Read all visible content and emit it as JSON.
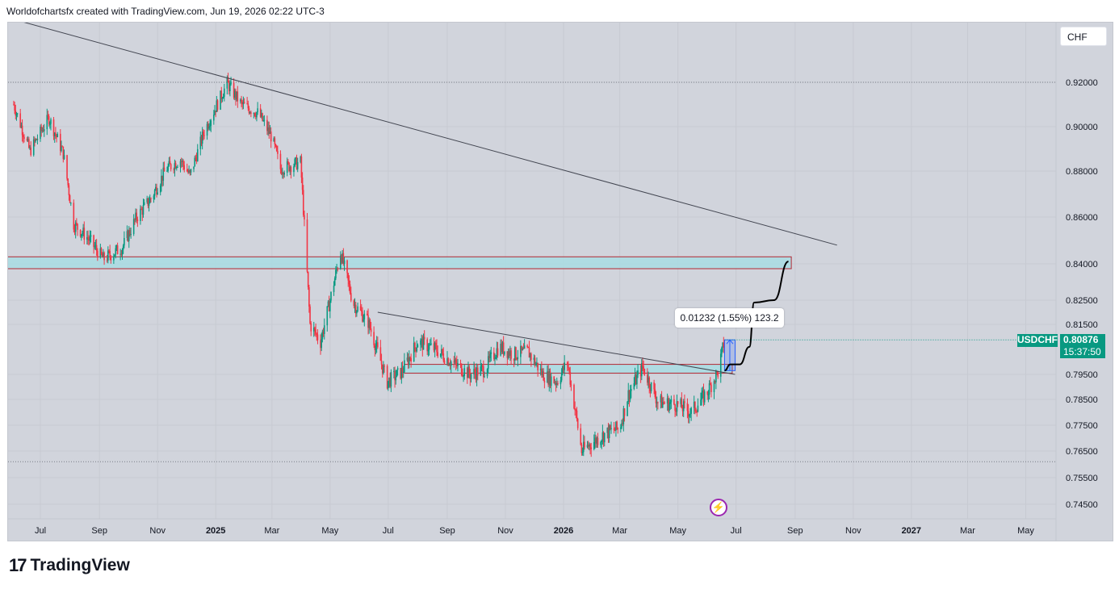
{
  "header": {
    "caption": "Worldofchartsfx created with TradingView.com, Jun 19, 2026 02:22 UTC-3"
  },
  "currency_button": "CHF",
  "symbol_badge": "USDCHF",
  "last_price": "0.80876",
  "countdown": "15:37:50",
  "measure_label": "0.01232 (1.55%) 123.2",
  "logo_text": "TradingView",
  "icons": {
    "logo": "tradingview-logo-icon",
    "flash": "lightning-icon"
  },
  "colors": {
    "up": "#089981",
    "down": "#f23645",
    "zone_fill": "#a9dce3",
    "zone_border": "#b22833",
    "measure": "#2962ff",
    "background": "#d1d4dc",
    "trendline": "#434651"
  },
  "chart_data": {
    "type": "candlestick",
    "symbol": "USDCHF",
    "interval": "daily",
    "y_ticks": [
      "0.92000",
      "0.90000",
      "0.88000",
      "0.86000",
      "0.84000",
      "0.82500",
      "0.81500",
      "0.79500",
      "0.78500",
      "0.77500",
      "0.76500",
      "0.75500",
      "0.74500"
    ],
    "x_ticks": [
      "Jul",
      "Sep",
      "Nov",
      "2025",
      "Mar",
      "May",
      "Jul",
      "Sep",
      "Nov",
      "2026",
      "Mar",
      "May",
      "Jul",
      "Sep",
      "Nov",
      "2027",
      "Mar",
      "May"
    ],
    "dotted_levels": [
      0.92,
      0.761
    ],
    "price_path": [
      [
        "2024-06-03",
        0.91
      ],
      [
        "2024-06-20",
        0.889
      ],
      [
        "2024-07-10",
        0.904
      ],
      [
        "2024-07-25",
        0.888
      ],
      [
        "2024-08-05",
        0.857
      ],
      [
        "2024-08-20",
        0.851
      ],
      [
        "2024-09-05",
        0.842
      ],
      [
        "2024-09-25",
        0.847
      ],
      [
        "2024-10-10",
        0.86
      ],
      [
        "2024-10-25",
        0.868
      ],
      [
        "2024-11-10",
        0.881
      ],
      [
        "2024-11-25",
        0.885
      ],
      [
        "2024-12-05",
        0.878
      ],
      [
        "2024-12-20",
        0.898
      ],
      [
        "2025-01-13",
        0.9195
      ],
      [
        "2025-01-28",
        0.91
      ],
      [
        "2025-02-15",
        0.906
      ],
      [
        "2025-03-01",
        0.895
      ],
      [
        "2025-03-10",
        0.881
      ],
      [
        "2025-03-31",
        0.884
      ],
      [
        "2025-04-10",
        0.815
      ],
      [
        "2025-04-21",
        0.808
      ],
      [
        "2025-05-01",
        0.825
      ],
      [
        "2025-05-12",
        0.845
      ],
      [
        "2025-05-25",
        0.824
      ],
      [
        "2025-06-10",
        0.816
      ],
      [
        "2025-06-30",
        0.792
      ],
      [
        "2025-07-15",
        0.796
      ],
      [
        "2025-08-01",
        0.808
      ],
      [
        "2025-08-20",
        0.805
      ],
      [
        "2025-09-05",
        0.8
      ],
      [
        "2025-09-25",
        0.795
      ],
      [
        "2025-10-10",
        0.797
      ],
      [
        "2025-10-25",
        0.806
      ],
      [
        "2025-11-10",
        0.803
      ],
      [
        "2025-11-25",
        0.804
      ],
      [
        "2025-12-10",
        0.795
      ],
      [
        "2025-12-25",
        0.792
      ],
      [
        "2026-01-05",
        0.8
      ],
      [
        "2026-01-20",
        0.765
      ],
      [
        "2026-01-30",
        0.768
      ],
      [
        "2026-02-15",
        0.772
      ],
      [
        "2026-03-01",
        0.774
      ],
      [
        "2026-03-10",
        0.787
      ],
      [
        "2026-03-25",
        0.798
      ],
      [
        "2026-04-10",
        0.784
      ],
      [
        "2026-04-30",
        0.783
      ],
      [
        "2026-05-15",
        0.78
      ],
      [
        "2026-06-01",
        0.788
      ],
      [
        "2026-06-12",
        0.796
      ],
      [
        "2026-06-19",
        0.8088
      ]
    ],
    "trendlines": [
      {
        "from": [
          "2024-05-20",
          0.95
        ],
        "to": [
          "2026-10-15",
          0.848
        ]
      },
      {
        "from": [
          "2025-06-20",
          0.82
        ],
        "to": [
          "2026-06-30",
          0.795
        ]
      }
    ],
    "zones": [
      {
        "x0": "2024-05-20",
        "x1": "2026-08-28",
        "y0": 0.838,
        "y1": 0.843
      },
      {
        "x0": "2025-07-18",
        "x1": "2026-06-27",
        "y0": 0.7955,
        "y1": 0.799
      }
    ],
    "measurement": {
      "x0": "2026-06-19",
      "x1": "2026-06-30",
      "from": 0.7965,
      "to": 0.8088
    },
    "projection": [
      [
        "2026-06-19",
        0.7965
      ],
      [
        "2026-06-25",
        0.799
      ],
      [
        "2026-07-05",
        0.799
      ],
      [
        "2026-07-15",
        0.806
      ],
      [
        "2026-07-20",
        0.824
      ],
      [
        "2026-08-10",
        0.825
      ],
      [
        "2026-08-25",
        0.841
      ]
    ]
  }
}
